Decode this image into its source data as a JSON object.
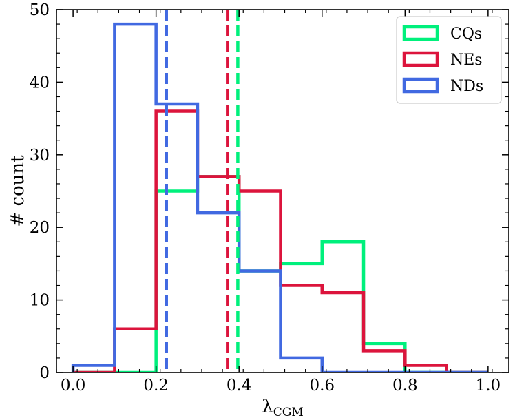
{
  "chart_data": {
    "type": "bar",
    "histtype": "step",
    "bins": [
      0.0,
      0.1,
      0.2,
      0.3,
      0.4,
      0.5,
      0.6,
      0.7,
      0.8,
      0.9,
      1.0
    ],
    "xlim": [
      -0.04,
      1.05
    ],
    "ylim": [
      0,
      50
    ],
    "xticks": [
      "0.0",
      "0.2",
      "0.4",
      "0.6",
      "0.8",
      "1.0"
    ],
    "xtick_values": [
      0.0,
      0.2,
      0.4,
      0.6,
      0.8,
      1.0
    ],
    "yticks": [
      "0",
      "10",
      "20",
      "30",
      "40",
      "50"
    ],
    "ytick_values": [
      0,
      10,
      20,
      30,
      40,
      50
    ],
    "xlabel": "λ",
    "xlabel_sub": "CGM",
    "ylabel": "# count",
    "legend_position": "top-right",
    "series": [
      {
        "name": "CQs",
        "color": "#00f07c",
        "counts": [
          0,
          0,
          25,
          27,
          14,
          15,
          18,
          4,
          0,
          0
        ],
        "mean_line": 0.397
      },
      {
        "name": "NEs",
        "color": "#dc143c",
        "counts": [
          0,
          6,
          36,
          27,
          25,
          12,
          11,
          3,
          1,
          0
        ],
        "mean_line": 0.372
      },
      {
        "name": "NDs",
        "color": "#4169e1",
        "counts": [
          1,
          48,
          37,
          22,
          14,
          2,
          0,
          0,
          0,
          0
        ],
        "mean_line": 0.225
      }
    ]
  }
}
